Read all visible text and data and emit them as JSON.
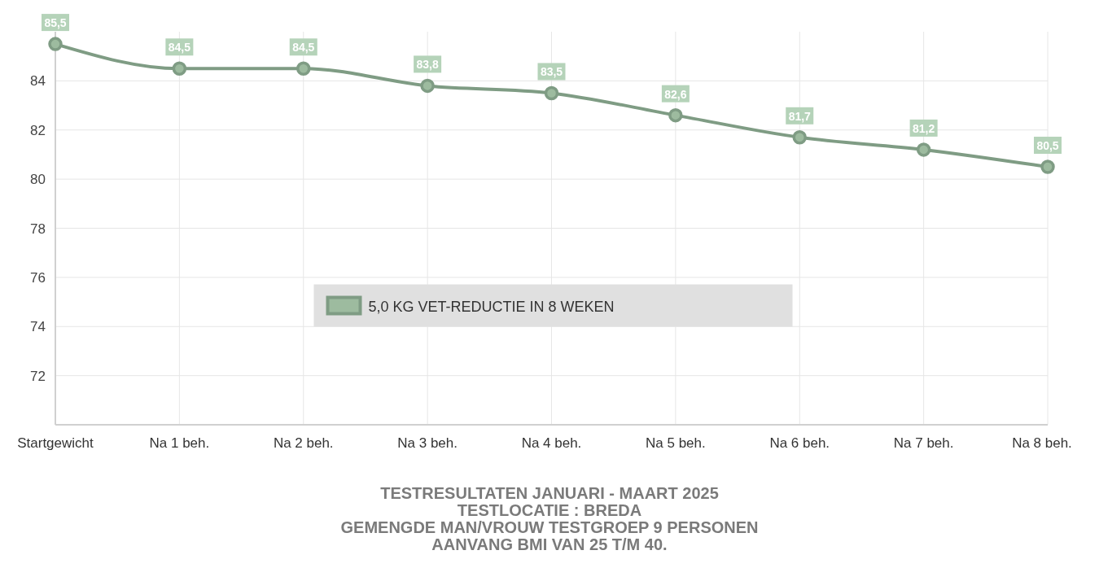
{
  "chart_data": {
    "type": "line",
    "categories": [
      "Startgewicht",
      "Na 1 beh.",
      "Na 2 beh.",
      "Na 3 beh.",
      "Na 4 beh.",
      "Na 5 beh.",
      "Na 6 beh.",
      "Na 7 beh.",
      "Na 8 beh."
    ],
    "series": [
      {
        "name": "5,0 KG VET-REDUCTIE IN 8 WEKEN",
        "color": "#7f9c84",
        "values": [
          85.5,
          84.5,
          84.5,
          83.8,
          83.5,
          82.6,
          81.7,
          81.2,
          80.5
        ],
        "value_labels": [
          "85,5",
          "84,5",
          "84,5",
          "83,8",
          "83,5",
          "82,6",
          "81,7",
          "81,2",
          "80,5"
        ]
      }
    ],
    "ylim": [
      70,
      86
    ],
    "yticks": [
      72,
      74,
      76,
      78,
      80,
      82,
      84
    ],
    "grid": true,
    "marker": "circle",
    "line_style": "solid",
    "legend": "center",
    "annotations": [
      "TESTRESULTATEN JANUARI - MAART 2025",
      "TESTLOCATIE : BREDA",
      "GEMENGDE MAN/VROUW TESTGROEP  9 PERSONEN",
      "AANVANG BMI VAN 25 T/M 40."
    ]
  }
}
